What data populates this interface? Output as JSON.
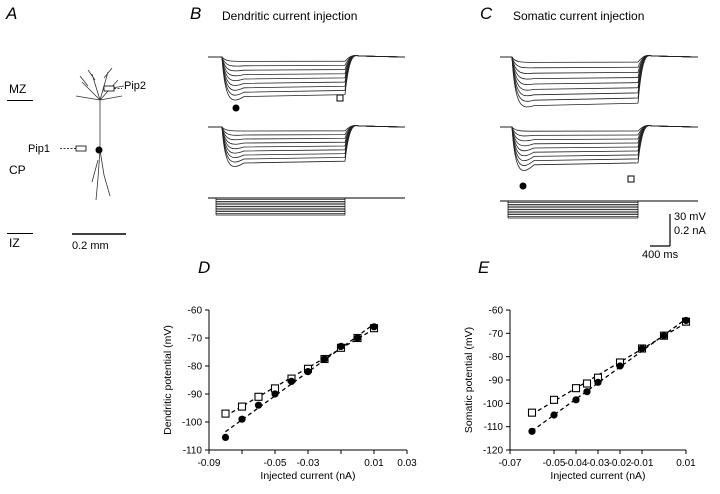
{
  "panels": {
    "A": {
      "letter": "A",
      "layers": [
        "MZ",
        "CP",
        "IZ"
      ],
      "pipettes": [
        "Pip2",
        "Pip1"
      ],
      "scale_bar": "0.2 mm"
    },
    "B": {
      "letter": "B",
      "title": "Dendritic current injection"
    },
    "C": {
      "letter": "C",
      "title": "Somatic current injection"
    },
    "scale": {
      "voltage": "30 mV",
      "current": "0.2 nA",
      "time": "400 ms"
    }
  },
  "chart_data": [
    {
      "panel": "D",
      "type": "scatter",
      "xlabel": "Injected current (nA)",
      "ylabel": "Dendritic potential (mV)",
      "xlim": [
        -0.09,
        0.03
      ],
      "ylim": [
        -110,
        -60
      ],
      "xticks": [
        -0.09,
        -0.07,
        -0.05,
        -0.03,
        -0.01,
        0.01,
        0.03
      ],
      "xtick_labels": [
        "-0.09",
        "",
        "-0.05",
        "-0.03",
        "",
        "0.01",
        "0.03"
      ],
      "yticks": [
        -110,
        -100,
        -90,
        -80,
        -70,
        -60
      ],
      "ytick_labels": [
        "-110",
        "-100",
        "-90",
        "-80",
        "-70",
        "-60"
      ],
      "series": [
        {
          "marker": "open-square",
          "x": [
            -0.08,
            -0.07,
            -0.06,
            -0.05,
            -0.04,
            -0.03,
            -0.02,
            -0.01,
            0.0,
            0.01
          ],
          "y": [
            -97,
            -94.5,
            -91,
            -88,
            -84.5,
            -81,
            -77.5,
            -73.5,
            -70,
            -66.5
          ]
        },
        {
          "marker": "filled-circle",
          "x": [
            -0.08,
            -0.07,
            -0.06,
            -0.05,
            -0.04,
            -0.03,
            -0.02,
            -0.01,
            0.0,
            0.01
          ],
          "y": [
            -105.5,
            -99,
            -94,
            -90,
            -85.5,
            -82,
            -77.5,
            -73,
            -70,
            -66
          ]
        }
      ]
    },
    {
      "panel": "E",
      "type": "scatter",
      "xlabel": "Injected current (nA)",
      "ylabel": "Somatic potential (mV)",
      "xlim": [
        -0.07,
        0.01
      ],
      "ylim": [
        -120,
        -60
      ],
      "xticks": [
        -0.07,
        -0.05,
        -0.04,
        -0.03,
        -0.02,
        -0.01,
        0.01
      ],
      "xtick_labels": [
        "-0.07",
        "-0.05",
        "-0.04",
        "-0.03",
        "-0.02",
        "-0.01",
        "0.01"
      ],
      "yticks": [
        -120,
        -110,
        -100,
        -90,
        -80,
        -70,
        -60
      ],
      "ytick_labels": [
        "-120",
        "-110",
        "-100",
        "-90",
        "-80",
        "-70",
        "-60"
      ],
      "series": [
        {
          "marker": "open-square",
          "x": [
            -0.06,
            -0.05,
            -0.04,
            -0.035,
            -0.03,
            -0.02,
            -0.01,
            0.0,
            0.01
          ],
          "y": [
            -104,
            -98.5,
            -93.5,
            -91.5,
            -89,
            -82.5,
            -76.5,
            -71,
            -65
          ]
        },
        {
          "marker": "filled-circle",
          "x": [
            -0.06,
            -0.05,
            -0.04,
            -0.035,
            -0.03,
            -0.02,
            -0.01,
            0.0,
            0.01
          ],
          "y": [
            -112,
            -105,
            -98.5,
            -95,
            -91,
            -84,
            -76.5,
            -71,
            -64.5
          ]
        }
      ]
    }
  ]
}
